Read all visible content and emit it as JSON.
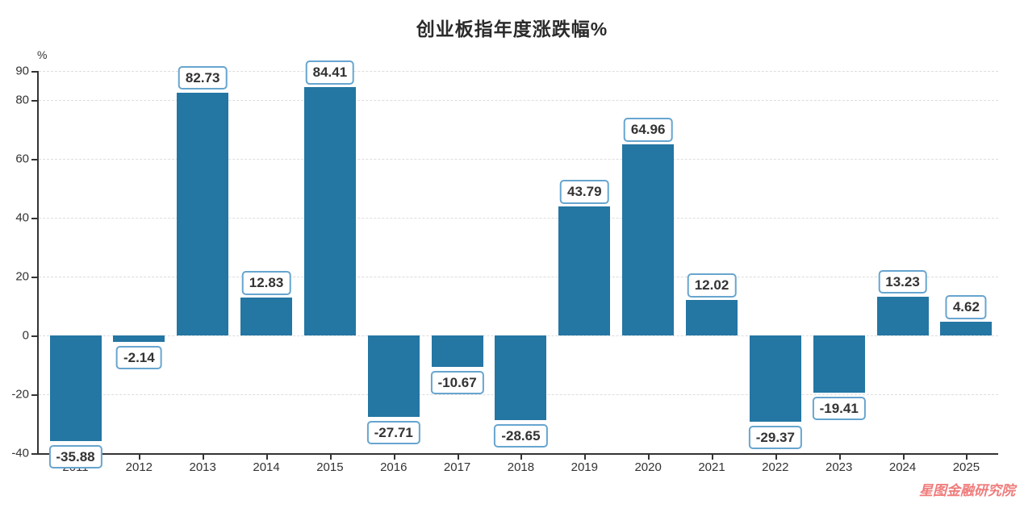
{
  "chart_data": {
    "type": "bar",
    "title": "创业板指年度涨跌幅%",
    "y_unit": "%",
    "categories": [
      "2011",
      "2012",
      "2013",
      "2014",
      "2015",
      "2016",
      "2017",
      "2018",
      "2019",
      "2020",
      "2021",
      "2022",
      "2023",
      "2024",
      "2025"
    ],
    "values": [
      -35.88,
      -2.14,
      82.73,
      12.83,
      84.41,
      -27.71,
      -10.67,
      -28.65,
      43.79,
      64.96,
      12.02,
      -29.37,
      -19.41,
      13.23,
      4.62
    ],
    "value_labels": [
      "-35.88",
      "-2.14",
      "82.73",
      "12.83",
      "84.41",
      "-27.71",
      "-10.67",
      "-28.65",
      "43.79",
      "64.96",
      "12.02",
      "-29.37",
      "-19.41",
      "13.23",
      "4.62"
    ],
    "ylim": [
      -40,
      90
    ],
    "yticks": [
      90,
      80,
      60,
      40,
      20,
      0,
      -20,
      -40
    ],
    "grid": "horizontal-dashed",
    "legend": "none",
    "colors": {
      "bar": "#2476a3",
      "axis": "#333333",
      "gridline": "#dddddd",
      "label_box_bg": "#ffffff",
      "label_box_border": "#67a5cf",
      "label_text": "#333333",
      "title": "#2b2b2b",
      "tick_text": "#333333"
    }
  },
  "watermark": {
    "text": "星图金融研究院",
    "color": "#ef7c7c"
  }
}
